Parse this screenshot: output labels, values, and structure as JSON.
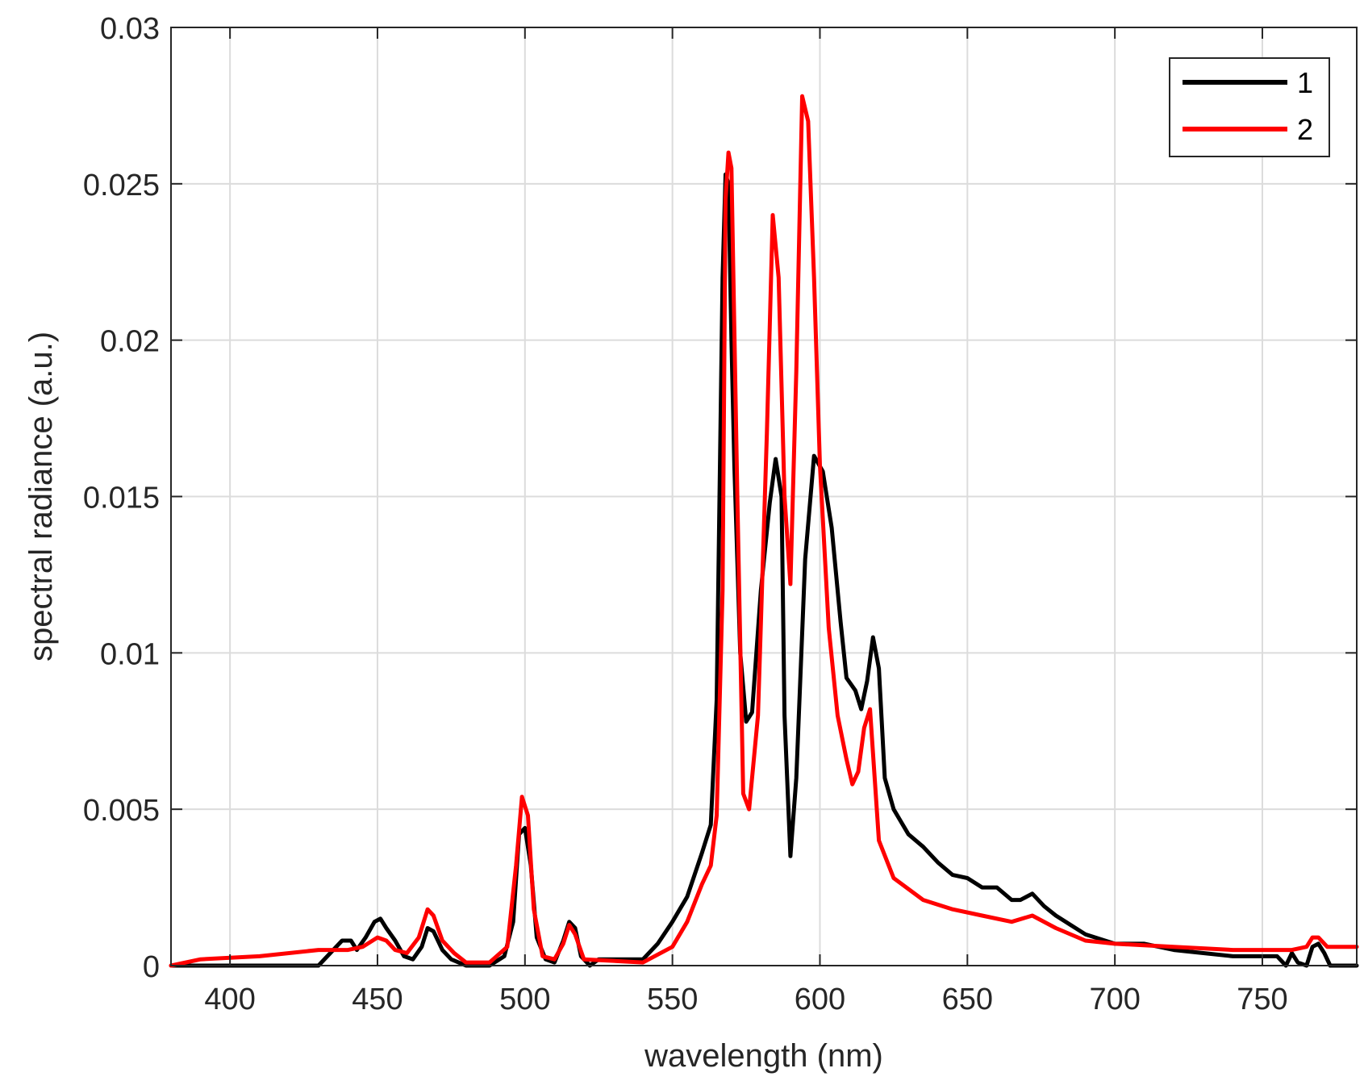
{
  "chart_data": {
    "type": "line",
    "title": "",
    "xlabel": "wavelength (nm)",
    "ylabel": "spectral radiance (a.u.)",
    "xlim": [
      380,
      782
    ],
    "ylim": [
      0,
      0.03
    ],
    "xticks": [
      400,
      450,
      500,
      550,
      600,
      650,
      700,
      750
    ],
    "yticks": [
      0,
      0.005,
      0.01,
      0.015,
      0.02,
      0.025,
      0.03
    ],
    "xtick_labels": [
      "400",
      "450",
      "500",
      "550",
      "600",
      "650",
      "700",
      "750"
    ],
    "ytick_labels": [
      "0",
      "0.005",
      "0.01",
      "0.015",
      "0.02",
      "0.025",
      "0.03"
    ],
    "grid": true,
    "legend_position": "top-right",
    "series": [
      {
        "name": "1",
        "color": "#000000",
        "points": [
          [
            380,
            0
          ],
          [
            430,
            0
          ],
          [
            435,
            0.0005
          ],
          [
            438,
            0.0008
          ],
          [
            441,
            0.0008
          ],
          [
            443,
            0.0005
          ],
          [
            446,
            0.0009
          ],
          [
            449,
            0.0014
          ],
          [
            451,
            0.0015
          ],
          [
            453,
            0.0012
          ],
          [
            456,
            0.0008
          ],
          [
            459,
            0.0003
          ],
          [
            462,
            0.0002
          ],
          [
            465,
            0.0006
          ],
          [
            467,
            0.0012
          ],
          [
            469,
            0.0011
          ],
          [
            472,
            0.0005
          ],
          [
            475,
            0.0002
          ],
          [
            480,
            0
          ],
          [
            488,
            0
          ],
          [
            493,
            0.0003
          ],
          [
            496,
            0.0014
          ],
          [
            498,
            0.0042
          ],
          [
            500,
            0.0044
          ],
          [
            502,
            0.0032
          ],
          [
            504,
            0.0009
          ],
          [
            507,
            0.0002
          ],
          [
            510,
            0.0001
          ],
          [
            513,
            0.0008
          ],
          [
            515,
            0.0014
          ],
          [
            517,
            0.0012
          ],
          [
            519,
            0.0003
          ],
          [
            522,
            0
          ],
          [
            525,
            0.0002
          ],
          [
            540,
            0.0002
          ],
          [
            545,
            0.0007
          ],
          [
            550,
            0.0014
          ],
          [
            555,
            0.0022
          ],
          [
            560,
            0.0036
          ],
          [
            563,
            0.0045
          ],
          [
            565,
            0.0085
          ],
          [
            567,
            0.022
          ],
          [
            568,
            0.0253
          ],
          [
            569,
            0.025
          ],
          [
            570,
            0.02
          ],
          [
            571,
            0.016
          ],
          [
            573,
            0.01
          ],
          [
            575,
            0.0078
          ],
          [
            577,
            0.0081
          ],
          [
            580,
            0.012
          ],
          [
            583,
            0.0148
          ],
          [
            585,
            0.0162
          ],
          [
            587,
            0.015
          ],
          [
            588,
            0.008
          ],
          [
            590,
            0.0035
          ],
          [
            592,
            0.006
          ],
          [
            595,
            0.013
          ],
          [
            598,
            0.0163
          ],
          [
            601,
            0.0158
          ],
          [
            604,
            0.014
          ],
          [
            607,
            0.011
          ],
          [
            609,
            0.0092
          ],
          [
            612,
            0.0088
          ],
          [
            614,
            0.0082
          ],
          [
            616,
            0.0091
          ],
          [
            618,
            0.0105
          ],
          [
            620,
            0.0095
          ],
          [
            622,
            0.006
          ],
          [
            625,
            0.005
          ],
          [
            630,
            0.0042
          ],
          [
            635,
            0.0038
          ],
          [
            640,
            0.0033
          ],
          [
            645,
            0.0029
          ],
          [
            650,
            0.0028
          ],
          [
            655,
            0.0025
          ],
          [
            660,
            0.0025
          ],
          [
            665,
            0.0021
          ],
          [
            668,
            0.0021
          ],
          [
            672,
            0.0023
          ],
          [
            676,
            0.0019
          ],
          [
            680,
            0.0016
          ],
          [
            685,
            0.0013
          ],
          [
            690,
            0.001
          ],
          [
            700,
            0.0007
          ],
          [
            710,
            0.0007
          ],
          [
            720,
            0.0005
          ],
          [
            730,
            0.0004
          ],
          [
            740,
            0.0003
          ],
          [
            750,
            0.0003
          ],
          [
            755,
            0.0003
          ],
          [
            758,
            0
          ],
          [
            760,
            0.0004
          ],
          [
            762,
            0.0001
          ],
          [
            765,
            0
          ],
          [
            767,
            0.0006
          ],
          [
            769,
            0.0007
          ],
          [
            771,
            0.0004
          ],
          [
            773,
            0
          ],
          [
            782,
            0
          ]
        ]
      },
      {
        "name": "2",
        "color": "#ff0000",
        "points": [
          [
            380,
            0
          ],
          [
            390,
            0.0002
          ],
          [
            410,
            0.0003
          ],
          [
            430,
            0.0005
          ],
          [
            440,
            0.0005
          ],
          [
            445,
            0.0006
          ],
          [
            450,
            0.0009
          ],
          [
            453,
            0.0008
          ],
          [
            456,
            0.0005
          ],
          [
            460,
            0.0004
          ],
          [
            464,
            0.0009
          ],
          [
            467,
            0.0018
          ],
          [
            469,
            0.0016
          ],
          [
            472,
            0.0008
          ],
          [
            476,
            0.0004
          ],
          [
            480,
            0.0001
          ],
          [
            488,
            0.0001
          ],
          [
            494,
            0.0006
          ],
          [
            497,
            0.0032
          ],
          [
            499,
            0.0054
          ],
          [
            501,
            0.0048
          ],
          [
            503,
            0.0018
          ],
          [
            506,
            0.0003
          ],
          [
            510,
            0.0002
          ],
          [
            513,
            0.0007
          ],
          [
            515,
            0.0013
          ],
          [
            517,
            0.001
          ],
          [
            520,
            0.0002
          ],
          [
            540,
            0.0001
          ],
          [
            550,
            0.0006
          ],
          [
            555,
            0.0014
          ],
          [
            560,
            0.0026
          ],
          [
            563,
            0.0032
          ],
          [
            565,
            0.0048
          ],
          [
            567,
            0.012
          ],
          [
            568,
            0.0245
          ],
          [
            569,
            0.026
          ],
          [
            570,
            0.0255
          ],
          [
            572,
            0.015
          ],
          [
            574,
            0.0055
          ],
          [
            576,
            0.005
          ],
          [
            579,
            0.008
          ],
          [
            582,
            0.017
          ],
          [
            584,
            0.024
          ],
          [
            586,
            0.022
          ],
          [
            588,
            0.015
          ],
          [
            590,
            0.0122
          ],
          [
            592,
            0.019
          ],
          [
            594,
            0.0278
          ],
          [
            596,
            0.027
          ],
          [
            598,
            0.022
          ],
          [
            600,
            0.016
          ],
          [
            603,
            0.0108
          ],
          [
            606,
            0.008
          ],
          [
            609,
            0.0066
          ],
          [
            611,
            0.0058
          ],
          [
            613,
            0.0062
          ],
          [
            615,
            0.0076
          ],
          [
            617,
            0.0082
          ],
          [
            620,
            0.004
          ],
          [
            625,
            0.0028
          ],
          [
            635,
            0.0021
          ],
          [
            645,
            0.0018
          ],
          [
            655,
            0.0016
          ],
          [
            665,
            0.0014
          ],
          [
            672,
            0.0016
          ],
          [
            680,
            0.0012
          ],
          [
            690,
            0.0008
          ],
          [
            700,
            0.0007
          ],
          [
            720,
            0.0006
          ],
          [
            740,
            0.0005
          ],
          [
            760,
            0.0005
          ],
          [
            765,
            0.0006
          ],
          [
            767,
            0.0009
          ],
          [
            769,
            0.0009
          ],
          [
            772,
            0.0006
          ],
          [
            782,
            0.0006
          ]
        ]
      }
    ]
  }
}
